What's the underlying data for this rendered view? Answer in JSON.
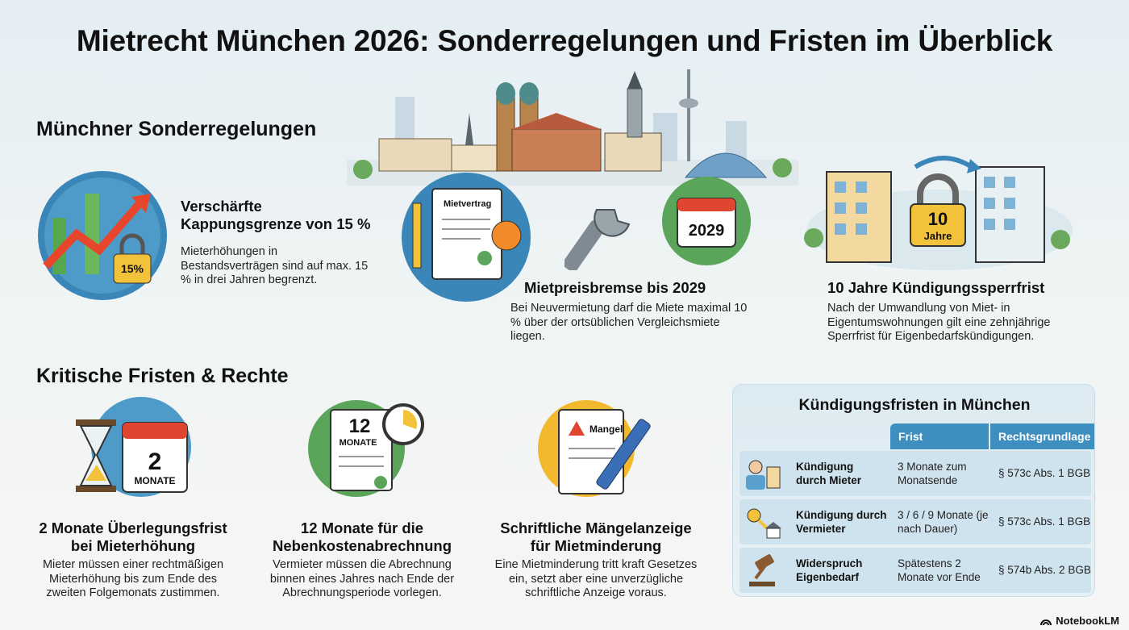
{
  "title": "Mietrecht München 2026: Sonderregelungen und Fristen im Überblick",
  "section1": {
    "heading": "Münchner Sonderregelungen",
    "cards": [
      {
        "title": "Verschärfte Kappungsgrenze von 15 %",
        "text": "Mieterhöhungen in Bestandsverträgen sind auf max. 15 % in drei Jahren begrenzt.",
        "icon_label": "15%"
      },
      {
        "title": "Mietpreisbremse bis 2029",
        "text": "Bei Neuvermietung darf die Miete maximal 10 % über der ortsüblichen Vergleichsmiete liegen.",
        "icon_label": "Mietvertrag",
        "calendar_label": "2029"
      },
      {
        "title": "10 Jahre Kündigungssperrfrist",
        "text": "Nach der Umwandlung von Miet- in Eigentumswohnungen gilt eine zehnjährige Sperrfrist für Eigenbedarfskündigungen.",
        "lock_number": "10",
        "lock_unit": "Jahre"
      }
    ]
  },
  "section2": {
    "heading": "Kritische Fristen & Rechte",
    "cards": [
      {
        "title": "2 Monate Überlegungsfrist bei Mieterhöhung",
        "text": "Mieter müssen einer rechtmäßigen Mieterhöhung bis zum Ende des zweiten Folgemonats zustimmen.",
        "icon_number": "2",
        "icon_unit": "MONATE"
      },
      {
        "title": "12 Monate für die Nebenkostenabrechnung",
        "text": "Vermieter müssen die Abrechnung binnen eines Jahres nach Ende der Abrechnungsperiode vorlegen.",
        "icon_number": "12",
        "icon_unit": "MONATE"
      },
      {
        "title": "Schriftliche Mängelanzeige für Mietminderung",
        "text": "Eine Mietminderung tritt kraft Gesetzes ein, setzt aber eine unverzügliche schriftliche Anzeige voraus.",
        "icon_label": "Mangel"
      }
    ]
  },
  "table": {
    "title": "Kündigungsfristen in München",
    "headers": [
      "Frist",
      "Rechtsgrundlage"
    ],
    "rows": [
      {
        "label": "Kündigung durch Mieter",
        "frist": "3 Monate zum Monatsende",
        "grundlage": "§ 573c Abs. 1 BGB",
        "icon": "tenant-house-icon"
      },
      {
        "label": "Kündigung durch Vermieter",
        "frist": "3 / 6 / 9 Monate (je nach Dauer)",
        "grundlage": "§ 573c Abs. 1 BGB",
        "icon": "key-house-icon"
      },
      {
        "label": "Widerspruch Eigenbedarf",
        "frist": "Spätestens 2 Monate vor Ende",
        "grundlage": "§ 574b Abs. 2 BGB",
        "icon": "gavel-icon"
      }
    ]
  },
  "footer": {
    "brand": "NotebookLM"
  },
  "colors": {
    "accent_blue": "#3e8fbf",
    "green": "#5aa55a",
    "red": "#e0452f",
    "yellow": "#f2c23a"
  }
}
